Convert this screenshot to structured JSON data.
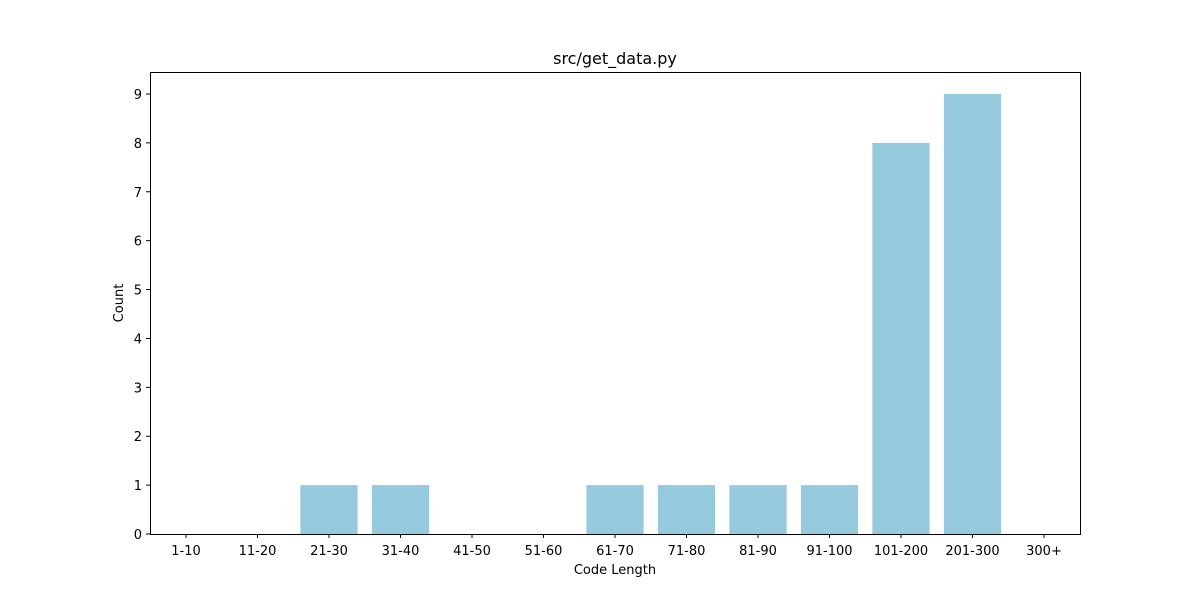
{
  "chart_data": {
    "type": "bar",
    "title": "src/get_data.py",
    "xlabel": "Code Length",
    "ylabel": "Count",
    "categories": [
      "1-10",
      "11-20",
      "21-30",
      "31-40",
      "41-50",
      "51-60",
      "61-70",
      "71-80",
      "81-90",
      "91-100",
      "101-200",
      "201-300",
      "300+"
    ],
    "values": [
      0,
      0,
      1,
      1,
      0,
      0,
      1,
      1,
      1,
      1,
      8,
      9,
      0
    ],
    "yticks": [
      0,
      1,
      2,
      3,
      4,
      5,
      6,
      7,
      8,
      9
    ],
    "ylim": [
      0,
      9.45
    ],
    "bar_color": "#95c9dd",
    "grid": false,
    "legend": "none"
  }
}
